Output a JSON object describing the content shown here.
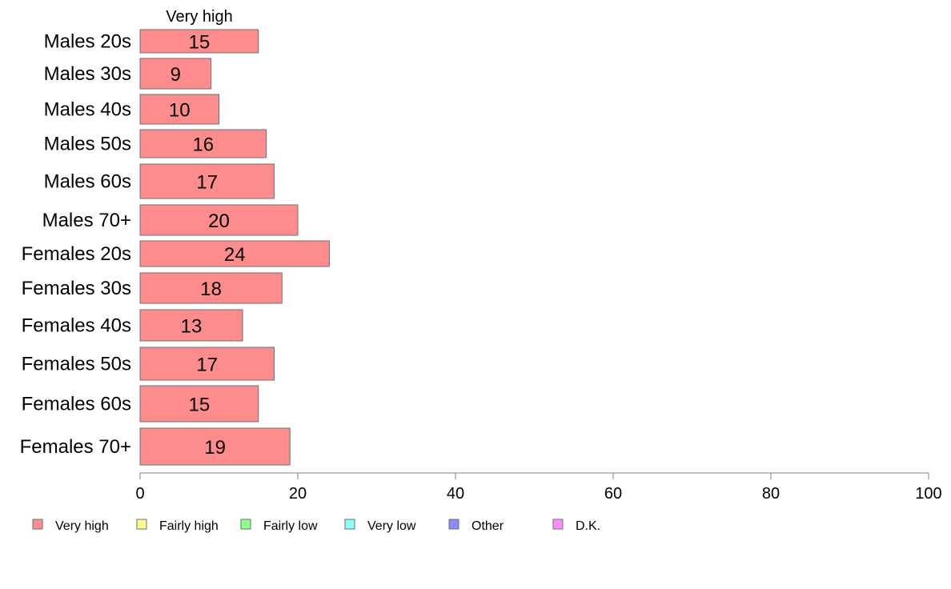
{
  "chart_data": {
    "type": "bar",
    "orientation": "horizontal",
    "stacked": true,
    "column_header": "Very high",
    "categories": [
      "Males 20s",
      "Males 30s",
      "Males 40s",
      "Males 50s",
      "Males 60s",
      "Males 70+",
      "Females 20s",
      "Females 30s",
      "Females 40s",
      "Females 50s",
      "Females 60s",
      "Females 70+"
    ],
    "series": [
      {
        "name": "Very high",
        "color": "#ff8c8c",
        "values": [
          15,
          9,
          10,
          16,
          17,
          20,
          24,
          18,
          13,
          17,
          15,
          19
        ]
      }
    ],
    "legend": [
      {
        "name": "Very high",
        "color": "#ff8c8c"
      },
      {
        "name": "Fairly high",
        "color": "#ffff8c"
      },
      {
        "name": "Fairly low",
        "color": "#8cff8c"
      },
      {
        "name": "Very low",
        "color": "#8cffff"
      },
      {
        "name": "Other",
        "color": "#8c8cff"
      },
      {
        "name": "D.K.",
        "color": "#ff8cff"
      }
    ],
    "legend_placement": "bottom",
    "xlim": [
      0,
      100
    ],
    "xticks": [
      0,
      20,
      40,
      60,
      80,
      100
    ],
    "grid": false
  }
}
